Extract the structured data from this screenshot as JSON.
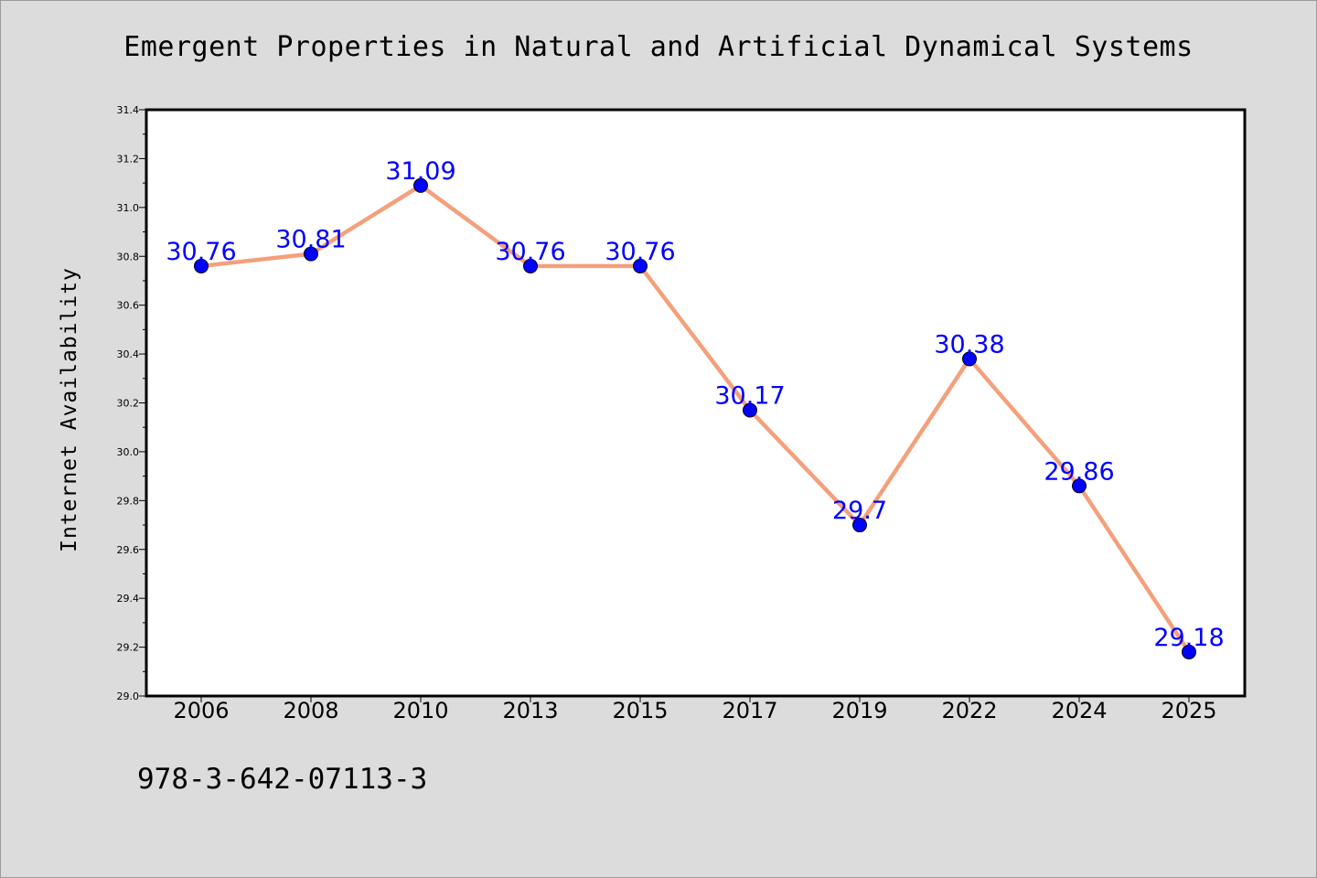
{
  "title": "Emergent Properties in Natural and Artificial Dynamical Systems",
  "footer_code": "978-3-642-07113-3",
  "chart_data": {
    "type": "line",
    "title": "Emergent Properties in Natural and Artificial Dynamical Systems",
    "xlabel": "",
    "ylabel": "Internet Availability",
    "categories": [
      "2006",
      "2008",
      "2010",
      "2013",
      "2015",
      "2017",
      "2019",
      "2022",
      "2024",
      "2025"
    ],
    "values": [
      30.76,
      30.81,
      31.09,
      30.76,
      30.76,
      30.17,
      29.7,
      30.38,
      29.86,
      29.18
    ],
    "data_labels": [
      "30.76",
      "30.81",
      "31.09",
      "30.76",
      "30.76",
      "30.17",
      "29.7",
      "30.38",
      "29.86",
      "29.18"
    ],
    "ylim": [
      29.0,
      31.4
    ],
    "yticks": [
      "29.0",
      "29.2",
      "29.4",
      "29.6",
      "29.8",
      "30.0",
      "30.2",
      "30.4",
      "30.6",
      "30.8",
      "31.0",
      "31.2",
      "31.4"
    ],
    "grid": false,
    "legend": "none",
    "line_color": "#f4a07c",
    "marker_color": "#0000ff"
  }
}
